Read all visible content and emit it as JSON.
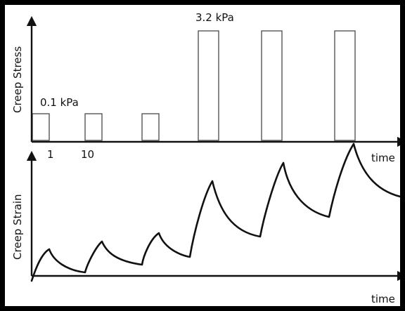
{
  "top_panel": {
    "ylabel": "Creep Stress",
    "xlabel": "time",
    "low_stress_label": "0.1 kPa",
    "high_stress_label": "3.2 kPa",
    "tick_labels": [
      "1",
      "10"
    ]
  },
  "bottom_panel": {
    "ylabel": "Creep Strain",
    "xlabel": "time"
  },
  "colors": {
    "frame": "#000000",
    "axis": "#111111",
    "pulse_outline": "#555555"
  }
}
